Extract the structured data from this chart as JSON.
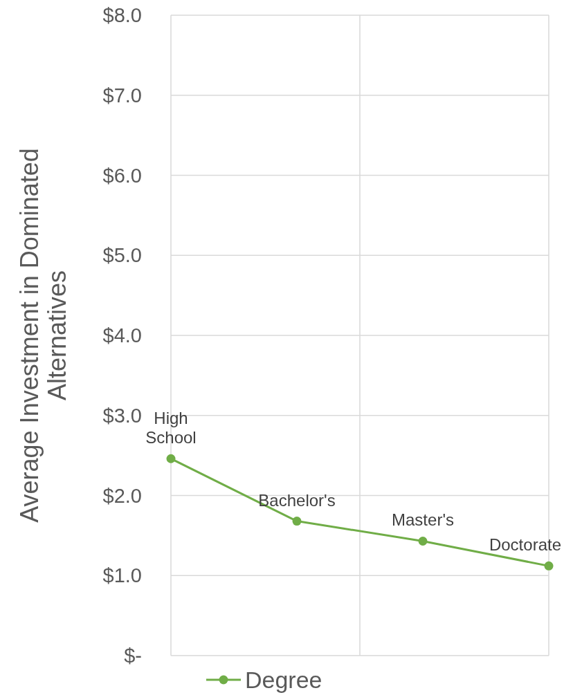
{
  "chart_data": {
    "type": "line",
    "ylabel": "Average Investment in Dominated Alternatives",
    "categories": [
      null,
      null,
      null,
      null
    ],
    "series": [
      {
        "name": "Degree",
        "color": "#70ad47",
        "values": [
          2.46,
          1.68,
          1.43,
          1.12
        ]
      }
    ],
    "ylim": [
      0,
      8
    ],
    "yticks": [
      {
        "value": 0,
        "label": "$-"
      },
      {
        "value": 1,
        "label": "$1.0"
      },
      {
        "value": 2,
        "label": "$2.0"
      },
      {
        "value": 3,
        "label": "$3.0"
      },
      {
        "value": 4,
        "label": "$4.0"
      },
      {
        "value": 5,
        "label": "$5.0"
      },
      {
        "value": 6,
        "label": "$6.0"
      },
      {
        "value": 7,
        "label": "$7.0"
      },
      {
        "value": 8,
        "label": "$8.0"
      }
    ],
    "tick_labels": "y",
    "grid": true,
    "legend": "bottom",
    "marker": "circle",
    "line_style": "solid",
    "annotations": [
      "High School",
      "Bachelor's",
      "Master's",
      "Doctorate"
    ]
  }
}
